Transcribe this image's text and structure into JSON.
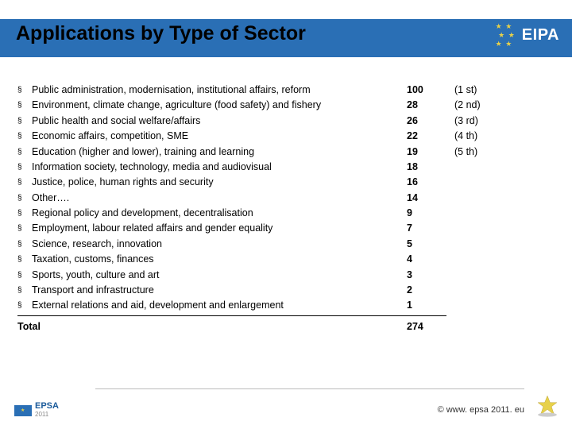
{
  "title": "Applications by Type of Sector",
  "badge": {
    "eipa": "EIPA"
  },
  "items": [
    {
      "label": "Public administration, modernisation, institutional affairs, reform",
      "value": "100",
      "rank": "(1 st)"
    },
    {
      "label": "Environment, climate change, agriculture (food safety) and fishery",
      "value": "28",
      "rank": "(2 nd)"
    },
    {
      "label": "Public health and social welfare/affairs",
      "value": "26",
      "rank": "(3 rd)"
    },
    {
      "label": "Economic affairs, competition, SME",
      "value": "22",
      "rank": "(4 th)"
    },
    {
      "label": "Education (higher and lower), training and learning",
      "value": "19",
      "rank": "(5 th)"
    },
    {
      "label": "Information society, technology, media and audiovisual",
      "value": "18",
      "rank": ""
    },
    {
      "label": "Justice, police, human rights and security",
      "value": "16",
      "rank": ""
    },
    {
      "label": "Other….",
      "value": "14",
      "rank": ""
    },
    {
      "label": "Regional policy and development, decentralisation",
      "value": "9",
      "rank": ""
    },
    {
      "label": "Employment, labour related affairs and gender equality",
      "value": "7",
      "rank": ""
    },
    {
      "label": "Science, research, innovation",
      "value": "5",
      "rank": ""
    },
    {
      "label": "Taxation, customs, finances",
      "value": "4",
      "rank": ""
    },
    {
      "label": "Sports, youth, culture and art",
      "value": "3",
      "rank": ""
    },
    {
      "label": "Transport and infrastructure",
      "value": "2",
      "rank": ""
    },
    {
      "label": "External relations and aid, development and enlargement",
      "value": "1",
      "rank": ""
    }
  ],
  "total": {
    "label": "Total",
    "value": "274"
  },
  "footer": {
    "url": "©  www. epsa 2011. eu",
    "epsa": "EPSA",
    "year": "2011"
  },
  "colors": {
    "bar": "#2a6fb5",
    "text": "#000000",
    "star": "#e7d14a",
    "background": "#ffffff"
  }
}
